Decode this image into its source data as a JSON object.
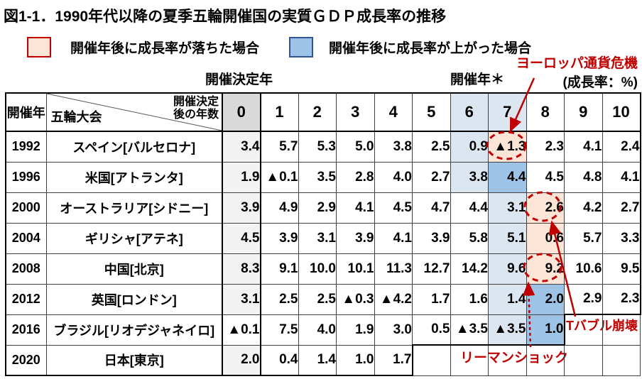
{
  "colors": {
    "fell": "#fce4d6",
    "rose": "#9dc3e6",
    "rose_border": "#2f5597",
    "host": "#dce6f1",
    "col0_header": "#d9d9d9",
    "col0": "#f2f2f2",
    "red": "#c00000",
    "grid": "#404040",
    "edge": "#000000"
  },
  "chart_data": {
    "type": "table",
    "title": "図1-1．1990年代以降の夏季五輪開催国の実質ＧＤＰ成長率の推移",
    "unit_label": "(成長率：%)",
    "legend": [
      {
        "label": "開催年後に成長率が落ちた場合",
        "meaning": "fell",
        "color": "#fce4d6"
      },
      {
        "label": "開催年後に成長率が上がった場合",
        "meaning": "rose",
        "color": "#9dc3e6"
      }
    ],
    "col_group_label_left": "開催決定年",
    "col_group_label_right": "開催年＊",
    "row_header": "開催年",
    "corner_bottom_left": "五輪大会",
    "corner_top_right_lines": [
      "開催決定",
      "後の年数"
    ],
    "columns": [
      "0",
      "1",
      "2",
      "3",
      "4",
      "5",
      "6",
      "7",
      "8",
      "9",
      "10"
    ],
    "rows": [
      {
        "year": "1992",
        "games": "スペイン[バルセロナ]",
        "values": [
          "3.4",
          "5.7",
          "5.3",
          "5.0",
          "3.8",
          "2.5",
          "0.9",
          "▲1.3",
          "2.3",
          "4.1",
          "2.4"
        ],
        "host_year_col": 6,
        "year_after_col": 7,
        "year_after_change": "fell",
        "circled_col": 7,
        "col0_shaded": true
      },
      {
        "year": "1996",
        "games": "米国[アトランタ]",
        "values": [
          "1.9",
          "▲0.1",
          "3.5",
          "2.8",
          "4.0",
          "2.7",
          "3.8",
          "4.4",
          "4.5",
          "4.8",
          "4.1"
        ],
        "host_year_col": 6,
        "year_after_col": 7,
        "year_after_change": "rose",
        "circled_col": null,
        "col0_shaded": true
      },
      {
        "year": "2000",
        "games": "オーストラリア[シドニー]",
        "values": [
          "3.9",
          "4.9",
          "2.9",
          "4.1",
          "4.5",
          "4.7",
          "4.4",
          "3.1",
          "2.6",
          "4.2",
          "2.7"
        ],
        "host_year_col": 7,
        "year_after_col": 8,
        "year_after_change": "fell",
        "circled_col": 8,
        "col0_shaded": true
      },
      {
        "year": "2004",
        "games": "ギリシャ[アテネ]",
        "values": [
          "4.5",
          "3.9",
          "3.1",
          "3.9",
          "4.1",
          "3.9",
          "5.8",
          "5.1",
          "0.6",
          "5.7",
          "3.3"
        ],
        "host_year_col": 7,
        "year_after_col": 8,
        "year_after_change": "fell",
        "circled_col": null,
        "col0_shaded": true
      },
      {
        "year": "2008",
        "games": "中国[北京]",
        "values": [
          "8.3",
          "9.1",
          "10.0",
          "10.1",
          "11.3",
          "12.7",
          "14.2",
          "9.6",
          "9.2",
          "10.6",
          "9.5"
        ],
        "host_year_col": 7,
        "year_after_col": 8,
        "year_after_change": "fell",
        "circled_col": 8,
        "col0_shaded": true
      },
      {
        "year": "2012",
        "games": "英国[ロンドン]",
        "values": [
          "3.1",
          "2.5",
          "2.5",
          "▲0.3",
          "▲4.2",
          "1.7",
          "1.6",
          "1.4",
          "2.0",
          "2.9",
          "2.3"
        ],
        "host_year_col": 7,
        "year_after_col": 8,
        "year_after_change": "rose",
        "circled_col": null,
        "col0_shaded": true
      },
      {
        "year": "2016",
        "games": "ブラジル[リオデジャネイロ]",
        "values": [
          "▲0.1",
          "7.5",
          "4.0",
          "1.9",
          "3.0",
          "0.5",
          "▲3.5",
          "▲3.5",
          "1.0"
        ],
        "host_year_col": 7,
        "year_after_col": 8,
        "year_after_change": "rose",
        "circled_col": null,
        "col0_shaded": false
      },
      {
        "year": "2020",
        "games": "日本[東京]",
        "values": [
          "2.0",
          "0.4",
          "1.4",
          "1.0",
          "1.7"
        ],
        "host_year_col": null,
        "year_after_col": null,
        "year_after_change": null,
        "circled_col": null,
        "col0_shaded": true
      }
    ],
    "crisis_annotations": [
      {
        "label": "ヨーロッパ通貨危機",
        "target_year": "1992",
        "target_col": 7
      },
      {
        "label": "ITバブル崩壊",
        "target_year": "2000",
        "target_col": 8
      },
      {
        "label": "リーマンショック",
        "target_year": "2008",
        "target_col": 8
      }
    ]
  }
}
